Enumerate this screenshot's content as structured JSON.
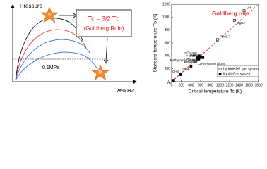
{
  "diagram": {
    "y_axis_label": "Pressure",
    "star_top": "Tc",
    "rule": "Tc = 3/2 Tb",
    "rule_name": "(Guldberg Rule)",
    "pressure_line": "0.1MPa",
    "star_bottom": "Tb",
    "x_axis_label": "wt% H2"
  },
  "chart_data": {
    "type": "scatter",
    "annotation": "Guldberg rule",
    "x_label": "Critical temperature Tc (K)",
    "y_label": "Standard temperature Tb (K)",
    "xlim": [
      0,
      1800
    ],
    "xticks": [
      0,
      200,
      400,
      600,
      800,
      1000,
      1200,
      1400,
      1600,
      1800
    ],
    "ylim": [
      0,
      1200
    ],
    "yticks": [
      0,
      200,
      400,
      600,
      800,
      1000,
      1200
    ],
    "guide_line": {
      "x": [
        0,
        1800
      ],
      "y": [
        0,
        1200
      ],
      "color": "#e03030"
    },
    "series": [
      {
        "name": "hydride-H2 gas system",
        "color": "#000000",
        "marker": "open-square",
        "labels": [
          "LaNi5-based alloys",
          "PdH0.7",
          "MgH2",
          "LiH"
        ],
        "x": [
          500,
          950,
          1300,
          1500
        ],
        "values": [
          320,
          650,
          950,
          1100
        ]
      },
      {
        "name": "liquid-Gas system",
        "color": "#000000",
        "marker": "filled-square",
        "labels": [
          "H2",
          "CH4",
          "NH3",
          "CCl4",
          "Benzene",
          "Water",
          "Toluene",
          "C7H16",
          "Methylcyclohexane",
          "n-Octane"
        ],
        "x": [
          40,
          190,
          400,
          556,
          562,
          647,
          592,
          540,
          572,
          569
        ],
        "values": [
          20,
          110,
          240,
          350,
          353,
          373,
          384,
          371,
          374,
          399
        ]
      }
    ],
    "legend": "bottom-right"
  }
}
